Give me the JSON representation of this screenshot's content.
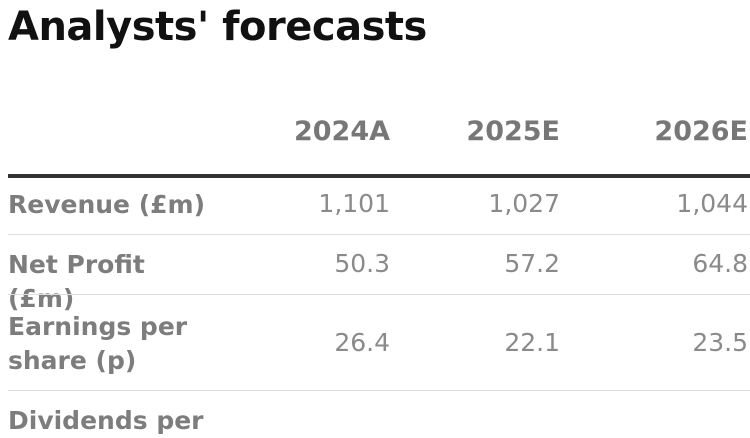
{
  "title": "Analysts' forecasts",
  "table": {
    "columns": [
      "2024A",
      "2025E",
      "2026E"
    ],
    "rows": [
      {
        "label": "Revenue (£m)",
        "values": [
          "1,101",
          "1,027",
          "1,044"
        ]
      },
      {
        "label": "Net Profit (£m)",
        "values": [
          "50.3",
          "57.2",
          "64.8"
        ]
      },
      {
        "label": "Earnings per share (p)",
        "values": [
          "26.4",
          "22.1",
          "23.5"
        ]
      },
      {
        "label": "Dividends per",
        "values": []
      }
    ]
  }
}
